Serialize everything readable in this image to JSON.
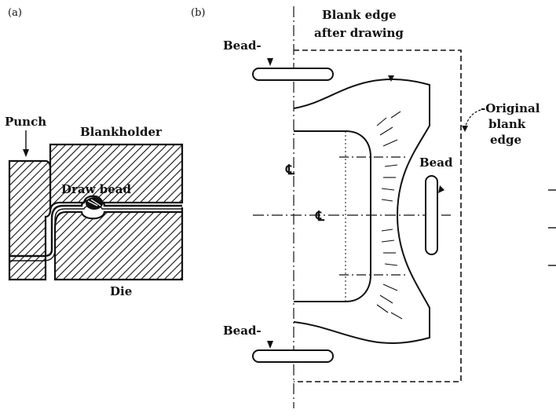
{
  "panel_a": {
    "tag": "(a)",
    "labels": {
      "punch": "Punch",
      "blankholder": "Blankholder",
      "draw_bead": "Draw bead",
      "die": "Die"
    }
  },
  "panel_b": {
    "tag": "(b)",
    "labels": {
      "blank_edge_after_line1": "Blank edge",
      "blank_edge_after_line2": "after drawing",
      "bead_top": "Bead-",
      "bead_bottom": "Bead-",
      "bead_right": "Bead",
      "original_line1": "-Original",
      "original_line2": "blank",
      "original_line3": "edge",
      "centerline_upper": "℄",
      "centerline_lower": "℄"
    }
  },
  "colors": {
    "ink": "#111111",
    "background": "#ffffff"
  }
}
